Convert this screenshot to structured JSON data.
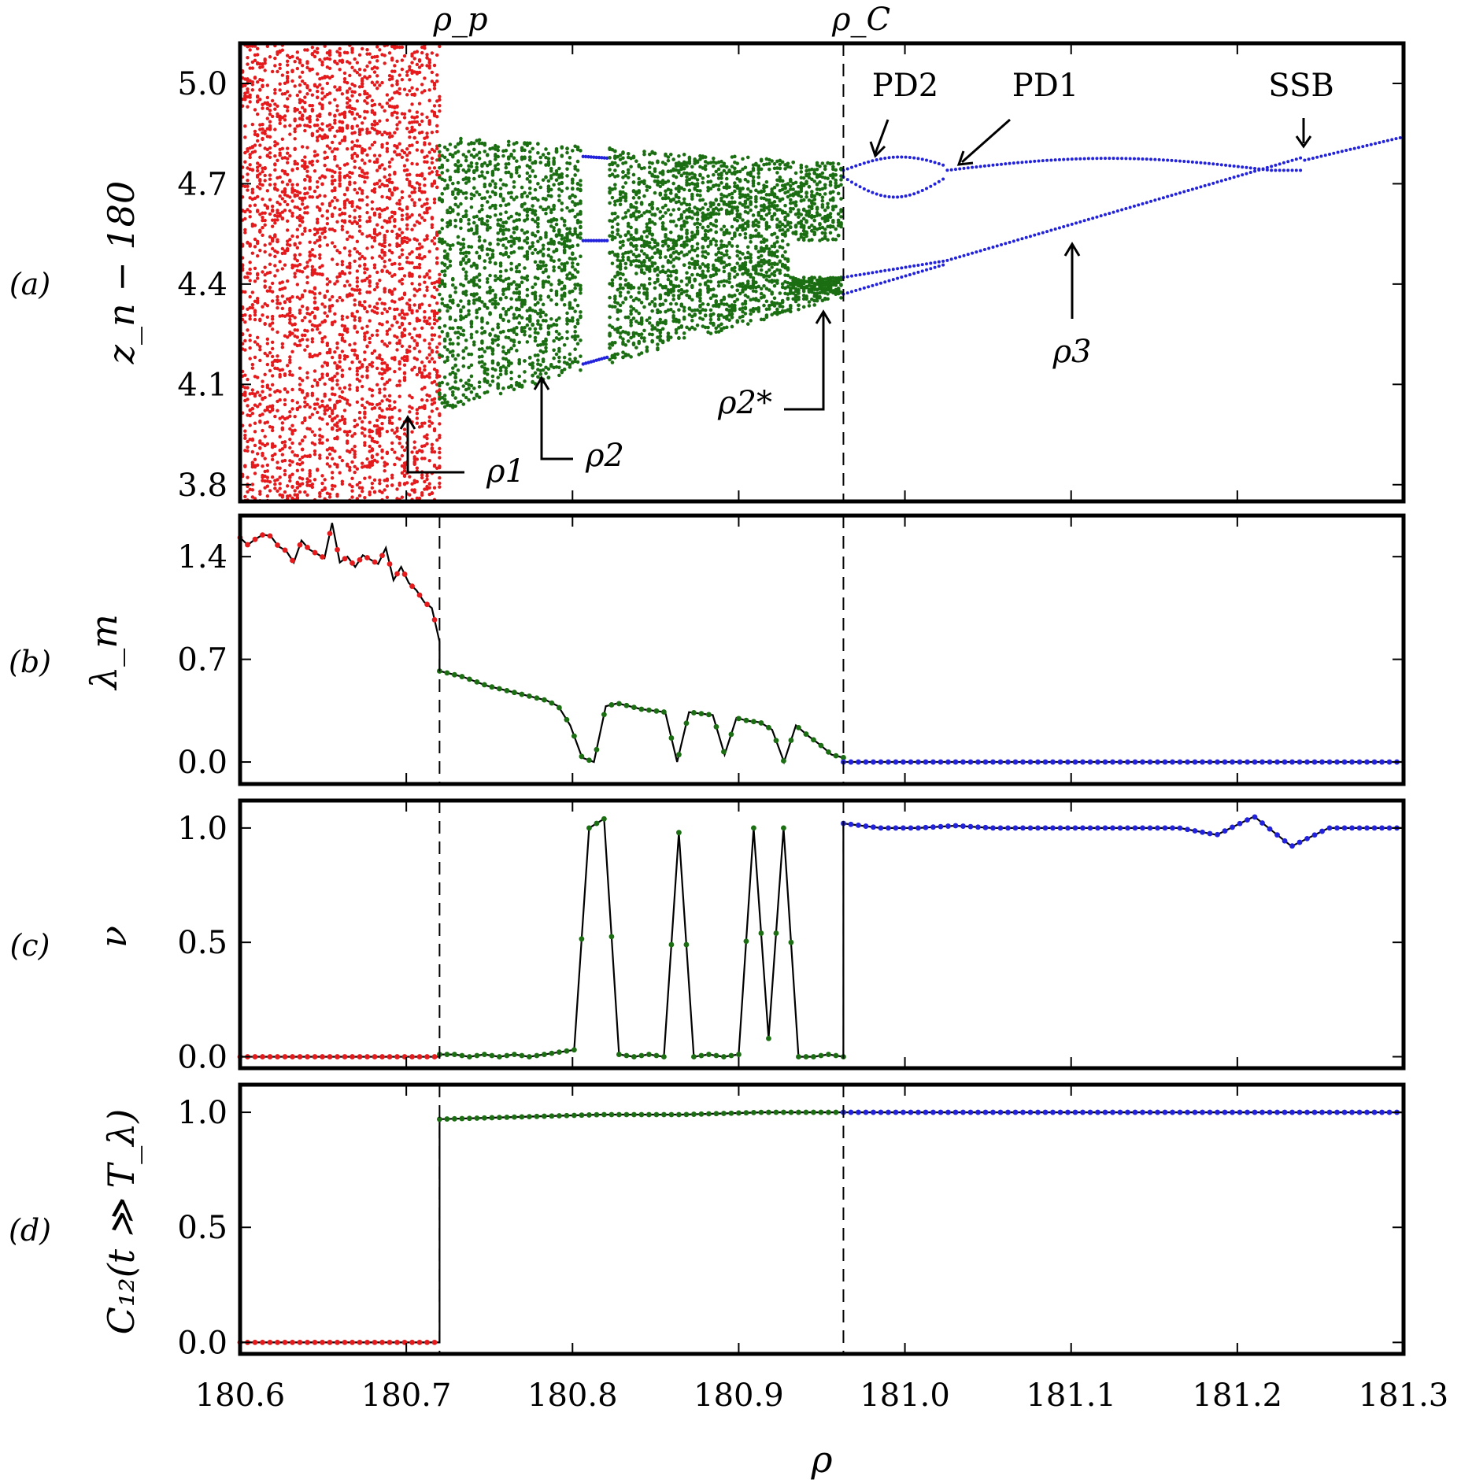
{
  "chart_data": {
    "type": "scatter",
    "xlabel": "ρ",
    "xlim": [
      180.6,
      181.3
    ],
    "xticks": [
      "180.6",
      "180.7",
      "180.8",
      "180.9",
      "181.0",
      "181.1",
      "181.2",
      "181.3"
    ],
    "xtick_values": [
      180.6,
      180.7,
      180.8,
      180.9,
      181.0,
      181.1,
      181.2,
      181.3
    ],
    "regime_colors": {
      "chaotic": "#e41a1c",
      "synchronized_chaos": "#1b6e12",
      "periodic": "#2222dd"
    },
    "vertical_markers": [
      {
        "label": "ρ_p",
        "x": 180.72
      },
      {
        "label": "ρ_C",
        "x": 180.963
      }
    ],
    "panels": [
      {
        "id": "a",
        "panel_label": "(a)",
        "ylabel": "z_n − 180",
        "type": "scatter",
        "ylim": [
          3.75,
          5.12
        ],
        "yticks": [
          "3.8",
          "4.1",
          "4.4",
          "4.7",
          "5.0"
        ],
        "ytick_values": [
          3.8,
          4.1,
          4.4,
          4.7,
          5.0
        ],
        "annotations": [
          "PD2",
          "PD1",
          "SSB",
          "ρ1",
          "ρ2",
          "ρ2*",
          "ρ3"
        ],
        "bands": [
          {
            "regime": "chaotic",
            "x_range": [
              180.6,
              180.72
            ],
            "y_range": [
              3.75,
              5.12
            ]
          },
          {
            "regime": "synchronized_chaos",
            "x_range": [
              180.72,
              180.963
            ],
            "y_range_start": [
              4.02,
              4.84
            ],
            "y_range_end": [
              4.36,
              4.76
            ]
          }
        ]
      },
      {
        "id": "b",
        "panel_label": "(b)",
        "ylabel": "λ_m",
        "type": "line",
        "ylim": [
          -0.15,
          1.68
        ],
        "yticks": [
          "0.0",
          "0.7",
          "1.4"
        ],
        "ytick_values": [
          0.0,
          0.7,
          1.4
        ],
        "series": [
          {
            "name": "chaotic",
            "x_range": [
              180.6,
              180.72
            ],
            "values": [
              1.53,
              1.48,
              1.52,
              1.55,
              1.54,
              1.47,
              1.44,
              1.36,
              1.51,
              1.45,
              1.42,
              1.39,
              1.63,
              1.36,
              1.4,
              1.33,
              1.41,
              1.38,
              1.35,
              1.46,
              1.24,
              1.33,
              1.22,
              1.17,
              1.09,
              1.05,
              0.82
            ]
          },
          {
            "name": "synchronized_chaos",
            "x_range": [
              180.72,
              180.963
            ],
            "values": [
              0.62,
              0.6,
              0.58,
              0.55,
              0.52,
              0.5,
              0.48,
              0.46,
              0.44,
              0.42,
              0.38,
              0.25,
              0.03,
              0.0,
              0.38,
              0.4,
              0.38,
              0.36,
              0.35,
              0.34,
              0.0,
              0.34,
              0.33,
              0.32,
              0.05,
              0.3,
              0.28,
              0.27,
              0.22,
              0.0,
              0.25,
              0.18,
              0.12,
              0.05,
              0.03
            ]
          },
          {
            "name": "periodic",
            "x_range": [
              180.963,
              181.3
            ],
            "values": [
              0.0,
              0.0
            ]
          }
        ]
      },
      {
        "id": "c",
        "panel_label": "(c)",
        "ylabel": "ν",
        "type": "line",
        "ylim": [
          -0.05,
          1.12
        ],
        "yticks": [
          "0.0",
          "0.5",
          "1.0"
        ],
        "ytick_values": [
          0.0,
          0.5,
          1.0
        ],
        "series": [
          {
            "name": "chaotic",
            "x_range": [
              180.6,
              180.72
            ],
            "values": [
              0.0,
              0.0
            ]
          },
          {
            "name": "synchronized_chaos",
            "x_range": [
              180.72,
              180.963
            ],
            "values": [
              0.01,
              0.01,
              0.0,
              0.01,
              0.0,
              0.01,
              0.0,
              0.01,
              0.02,
              0.03,
              1.0,
              1.04,
              0.01,
              0.0,
              0.01,
              0.0,
              0.98,
              0.0,
              0.01,
              0.0,
              0.01,
              1.0,
              0.08,
              1.0,
              0.0,
              0.0,
              0.01,
              0.0
            ]
          },
          {
            "name": "periodic",
            "x_range": [
              180.963,
              181.3
            ],
            "values": [
              1.02,
              1.0,
              1.0,
              1.01,
              1.0,
              1.0,
              1.0,
              1.0,
              1.0,
              1.0,
              0.97,
              1.05,
              0.92,
              1.0,
              1.0,
              1.0
            ]
          }
        ]
      },
      {
        "id": "d",
        "panel_label": "(d)",
        "ylabel": "C₁₂(t ≫ T_λ)",
        "type": "line",
        "ylim": [
          -0.05,
          1.12
        ],
        "yticks": [
          "0.0",
          "0.5",
          "1.0"
        ],
        "ytick_values": [
          0.0,
          0.5,
          1.0
        ],
        "series": [
          {
            "name": "chaotic",
            "x_range": [
              180.6,
              180.72
            ],
            "values": [
              0.0,
              0.0
            ]
          },
          {
            "name": "synchronized_chaos",
            "x_range": [
              180.72,
              180.963
            ],
            "values": [
              0.97,
              0.98,
              0.99,
              0.99,
              1.0,
              1.0
            ]
          },
          {
            "name": "periodic",
            "x_range": [
              180.963,
              181.3
            ],
            "values": [
              1.0,
              1.0
            ]
          }
        ]
      }
    ]
  }
}
